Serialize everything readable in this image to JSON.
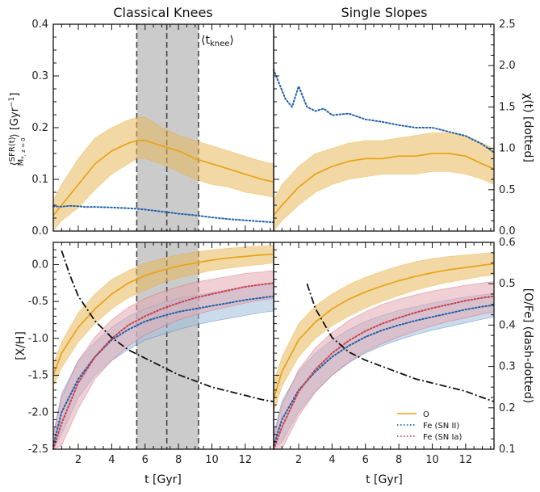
{
  "colors": {
    "o": "#e8a317",
    "o_band": "#e8b85a",
    "fe2": "#1f5fa8",
    "fe2_band": "#9fbedd",
    "fe1a": "#c8404a",
    "fe1a_band": "#e4a9b2",
    "knee_band": "#c8c8c8",
    "dashdot": "#111111"
  },
  "chart_data": [
    {
      "panel": "top-left",
      "type": "line",
      "title": "Classical Knees",
      "xlabel": "",
      "ylabel": "⟨SFR(t) / M*, z=0⟩ [Gyr⁻¹]",
      "ylabel_parts": {
        "sfr": "SFR(t)",
        "mstar": "M",
        "mstar_sub": "*, z = 0",
        "unit": " [Gyr",
        "exp": "−1",
        "close": "]"
      },
      "xlim": [
        0.5,
        13.7
      ],
      "ylim": [
        0.0,
        0.4
      ],
      "yticks": [
        "0.0",
        "0.1",
        "0.2",
        "0.3",
        "0.4"
      ],
      "annotation": "⟨t_knee⟩",
      "annotation_parts": {
        "t": "t",
        "sub": "knee"
      },
      "knee_band": [
        5.5,
        9.2
      ],
      "knee_lines": [
        5.5,
        7.3,
        9.2
      ],
      "series": [
        {
          "name": "SFR",
          "style": "solid",
          "x": [
            0.5,
            1,
            2,
            3,
            4,
            5,
            5.5,
            6,
            7,
            8,
            9,
            10,
            11,
            12,
            13,
            13.7
          ],
          "values": [
            0.03,
            0.05,
            0.09,
            0.13,
            0.155,
            0.17,
            0.175,
            0.175,
            0.165,
            0.155,
            0.14,
            0.13,
            0.12,
            0.11,
            0.1,
            0.095
          ],
          "lower": [
            0.0,
            0.02,
            0.045,
            0.08,
            0.11,
            0.13,
            0.14,
            0.14,
            0.13,
            0.115,
            0.1,
            0.09,
            0.085,
            0.075,
            0.07,
            0.065
          ],
          "upper": [
            0.06,
            0.09,
            0.14,
            0.18,
            0.2,
            0.215,
            0.22,
            0.22,
            0.2,
            0.185,
            0.175,
            0.165,
            0.155,
            0.145,
            0.135,
            0.13
          ]
        },
        {
          "name": "χ(t)",
          "style": "dotted",
          "axis": "right",
          "x": [
            0.5,
            1,
            1.5,
            2,
            2.5,
            3,
            4,
            5,
            5.5,
            6,
            7,
            8,
            9,
            10,
            11,
            12,
            13,
            13.7
          ],
          "values": [
            0.3,
            0.295,
            0.305,
            0.3,
            0.29,
            0.292,
            0.285,
            0.275,
            0.27,
            0.26,
            0.235,
            0.21,
            0.19,
            0.165,
            0.145,
            0.13,
            0.115,
            0.105
          ]
        }
      ]
    },
    {
      "panel": "top-right",
      "type": "line",
      "title": "Single Slopes",
      "ylabel_right": "χ(t) [dotted]",
      "ylabel_right_parts": {
        "chi": "χ",
        "rest": "(t) [dotted]"
      },
      "xlim": [
        0.5,
        13.7
      ],
      "ylim_right": [
        0.0,
        2.5
      ],
      "yticks_right": [
        "0.0",
        "0.5",
        "1.0",
        "1.5",
        "2.0",
        "2.5"
      ],
      "series": [
        {
          "name": "SFR",
          "style": "solid",
          "x": [
            0.5,
            1,
            2,
            3,
            4,
            5,
            6,
            7,
            8,
            9,
            10,
            11,
            12,
            13,
            13.7
          ],
          "values": [
            0.03,
            0.05,
            0.085,
            0.11,
            0.125,
            0.135,
            0.14,
            0.14,
            0.145,
            0.145,
            0.15,
            0.15,
            0.145,
            0.13,
            0.12
          ],
          "lower": [
            0.0,
            0.02,
            0.05,
            0.075,
            0.09,
            0.1,
            0.105,
            0.11,
            0.11,
            0.11,
            0.115,
            0.115,
            0.11,
            0.1,
            0.09
          ],
          "upper": [
            0.06,
            0.09,
            0.125,
            0.15,
            0.16,
            0.17,
            0.175,
            0.175,
            0.18,
            0.185,
            0.19,
            0.19,
            0.185,
            0.17,
            0.16
          ]
        },
        {
          "name": "χ(t)",
          "style": "dotted",
          "axis": "right",
          "x": [
            0.5,
            0.8,
            1.2,
            1.6,
            2,
            2.5,
            3,
            3.5,
            4,
            5,
            6,
            7,
            8,
            9,
            10,
            11,
            12,
            13,
            13.7
          ],
          "values": [
            1.95,
            1.8,
            1.6,
            1.5,
            1.75,
            1.5,
            1.45,
            1.48,
            1.4,
            1.42,
            1.35,
            1.32,
            1.28,
            1.25,
            1.25,
            1.2,
            1.15,
            1.05,
            0.95
          ]
        }
      ]
    },
    {
      "panel": "bottom-left",
      "type": "line",
      "xlabel": "t [Gyr]",
      "ylabel": "[X/H]",
      "xlim": [
        0.5,
        13.7
      ],
      "ylim": [
        -2.5,
        0.3
      ],
      "xticks": [
        "2",
        "4",
        "6",
        "8",
        "10",
        "12"
      ],
      "yticks": [
        "-2.5",
        "-2.0",
        "-1.5",
        "-1.0",
        "-0.5",
        "0.0"
      ],
      "knee_band": [
        5.5,
        9.2
      ],
      "knee_lines": [
        5.5,
        7.3,
        9.2
      ],
      "series": [
        {
          "name": "O",
          "style": "solid",
          "x": [
            0.5,
            1,
            2,
            3,
            4,
            5,
            6,
            7,
            8,
            9,
            10,
            11,
            12,
            13,
            13.7
          ],
          "values": [
            -1.5,
            -1.2,
            -0.85,
            -0.6,
            -0.4,
            -0.25,
            -0.15,
            -0.08,
            -0.02,
            0.02,
            0.06,
            0.09,
            0.11,
            0.13,
            0.14
          ],
          "lower": [
            -1.65,
            -1.4,
            -1.05,
            -0.8,
            -0.6,
            -0.45,
            -0.35,
            -0.25,
            -0.18,
            -0.13,
            -0.08,
            -0.05,
            -0.02,
            0.0,
            0.02
          ],
          "upper": [
            -1.35,
            -1.05,
            -0.65,
            -0.4,
            -0.2,
            -0.08,
            0.02,
            0.08,
            0.13,
            0.17,
            0.2,
            0.22,
            0.24,
            0.25,
            0.26
          ]
        },
        {
          "name": "Fe (SN II)",
          "style": "dotted",
          "x": [
            0.5,
            1,
            2,
            3,
            4,
            5,
            6,
            7,
            8,
            9,
            10,
            11,
            12,
            13,
            13.7
          ],
          "values": [
            -2.45,
            -2.0,
            -1.55,
            -1.25,
            -1.02,
            -0.88,
            -0.77,
            -0.7,
            -0.64,
            -0.6,
            -0.56,
            -0.52,
            -0.48,
            -0.45,
            -0.43
          ],
          "lower": [
            -2.5,
            -2.3,
            -1.8,
            -1.5,
            -1.3,
            -1.15,
            -1.02,
            -0.95,
            -0.88,
            -0.82,
            -0.77,
            -0.73,
            -0.69,
            -0.65,
            -0.63
          ],
          "upper": [
            -2.3,
            -1.75,
            -1.3,
            -1.05,
            -0.85,
            -0.7,
            -0.6,
            -0.52,
            -0.46,
            -0.42,
            -0.38,
            -0.34,
            -0.3,
            -0.27,
            -0.25
          ]
        },
        {
          "name": "Fe (SN Ia)",
          "style": "dotted",
          "x": [
            0.5,
            1,
            2,
            3,
            4,
            5,
            6,
            7,
            8,
            9,
            10,
            11,
            12,
            13,
            13.7
          ],
          "values": [
            -2.5,
            -2.15,
            -1.6,
            -1.25,
            -1.0,
            -0.82,
            -0.7,
            -0.6,
            -0.52,
            -0.45,
            -0.4,
            -0.35,
            -0.3,
            -0.27,
            -0.25
          ],
          "lower": [
            -2.5,
            -2.45,
            -1.95,
            -1.55,
            -1.3,
            -1.1,
            -0.95,
            -0.85,
            -0.75,
            -0.68,
            -0.62,
            -0.57,
            -0.52,
            -0.48,
            -0.46
          ],
          "upper": [
            -2.3,
            -1.8,
            -1.3,
            -0.98,
            -0.75,
            -0.58,
            -0.46,
            -0.37,
            -0.3,
            -0.24,
            -0.2,
            -0.16,
            -0.12,
            -0.1,
            -0.08
          ]
        },
        {
          "name": "[O/Fe]",
          "style": "dashdot",
          "axis": "right",
          "x": [
            1.0,
            1.5,
            2,
            3,
            4,
            5,
            6,
            7,
            8,
            9,
            10,
            11,
            12,
            13,
            13.7
          ],
          "values": [
            0.58,
            0.52,
            0.47,
            0.41,
            0.37,
            0.34,
            0.32,
            0.3,
            0.28,
            0.265,
            0.25,
            0.24,
            0.23,
            0.22,
            0.215
          ]
        }
      ]
    },
    {
      "panel": "bottom-right",
      "type": "line",
      "xlabel": "t [Gyr]",
      "ylabel_right": "[O/Fe] (dash-dotted)",
      "xlim": [
        0.5,
        13.7
      ],
      "ylim_right": [
        0.1,
        0.6
      ],
      "xticks": [
        "2",
        "4",
        "6",
        "8",
        "10",
        "12"
      ],
      "yticks_right": [
        "0.1",
        "0.2",
        "0.3",
        "0.4",
        "0.5",
        "0.6"
      ],
      "legend": {
        "location": "bottom-right",
        "entries": [
          "O",
          "Fe (SN II)",
          "Fe (SN Ia)"
        ]
      },
      "series": [
        {
          "name": "O",
          "style": "solid",
          "x": [
            0.5,
            1,
            2,
            3,
            4,
            5,
            6,
            7,
            8,
            9,
            10,
            11,
            12,
            13,
            13.7
          ],
          "values": [
            -1.82,
            -1.45,
            -1.02,
            -0.78,
            -0.6,
            -0.47,
            -0.37,
            -0.29,
            -0.22,
            -0.16,
            -0.11,
            -0.07,
            -0.04,
            -0.01,
            0.01
          ],
          "lower": [
            -2.0,
            -1.65,
            -1.25,
            -1.0,
            -0.83,
            -0.7,
            -0.59,
            -0.5,
            -0.42,
            -0.35,
            -0.29,
            -0.24,
            -0.2,
            -0.16,
            -0.14
          ],
          "upper": [
            -1.6,
            -1.25,
            -0.8,
            -0.56,
            -0.4,
            -0.27,
            -0.17,
            -0.09,
            -0.02,
            0.04,
            0.08,
            0.11,
            0.13,
            0.15,
            0.16
          ]
        },
        {
          "name": "Fe (SN II)",
          "style": "dotted",
          "x": [
            0.5,
            1,
            2,
            3,
            4,
            5,
            6,
            7,
            8,
            9,
            10,
            11,
            12,
            13,
            13.7
          ],
          "values": [
            -2.45,
            -2.1,
            -1.7,
            -1.45,
            -1.25,
            -1.1,
            -0.98,
            -0.89,
            -0.82,
            -0.76,
            -0.71,
            -0.66,
            -0.61,
            -0.57,
            -0.55
          ],
          "lower": [
            -2.5,
            -2.4,
            -2.0,
            -1.72,
            -1.5,
            -1.33,
            -1.2,
            -1.1,
            -1.02,
            -0.95,
            -0.89,
            -0.84,
            -0.79,
            -0.74,
            -0.71
          ],
          "upper": [
            -2.3,
            -1.85,
            -1.45,
            -1.2,
            -1.02,
            -0.88,
            -0.77,
            -0.69,
            -0.62,
            -0.57,
            -0.52,
            -0.48,
            -0.44,
            -0.41,
            -0.39
          ]
        },
        {
          "name": "Fe (SN Ia)",
          "style": "dotted",
          "x": [
            0.5,
            1,
            2,
            3,
            4,
            5,
            6,
            7,
            8,
            9,
            10,
            11,
            12,
            13,
            13.7
          ],
          "values": [
            -2.5,
            -2.2,
            -1.72,
            -1.42,
            -1.2,
            -1.03,
            -0.9,
            -0.8,
            -0.72,
            -0.65,
            -0.59,
            -0.54,
            -0.49,
            -0.45,
            -0.43
          ],
          "lower": [
            -2.5,
            -2.5,
            -2.05,
            -1.73,
            -1.5,
            -1.32,
            -1.18,
            -1.07,
            -0.98,
            -0.9,
            -0.83,
            -0.77,
            -0.72,
            -0.67,
            -0.64
          ],
          "upper": [
            -2.35,
            -1.9,
            -1.42,
            -1.13,
            -0.92,
            -0.76,
            -0.64,
            -0.54,
            -0.47,
            -0.41,
            -0.36,
            -0.32,
            -0.28,
            -0.25,
            -0.23
          ]
        },
        {
          "name": "[O/Fe]",
          "style": "dashdot",
          "axis": "right",
          "x": [
            2.5,
            3,
            4,
            5,
            6,
            7,
            8,
            9,
            10,
            11,
            12,
            13,
            13.7
          ],
          "values": [
            0.5,
            0.44,
            0.37,
            0.335,
            0.315,
            0.3,
            0.285,
            0.27,
            0.26,
            0.25,
            0.24,
            0.225,
            0.215
          ]
        }
      ]
    }
  ]
}
